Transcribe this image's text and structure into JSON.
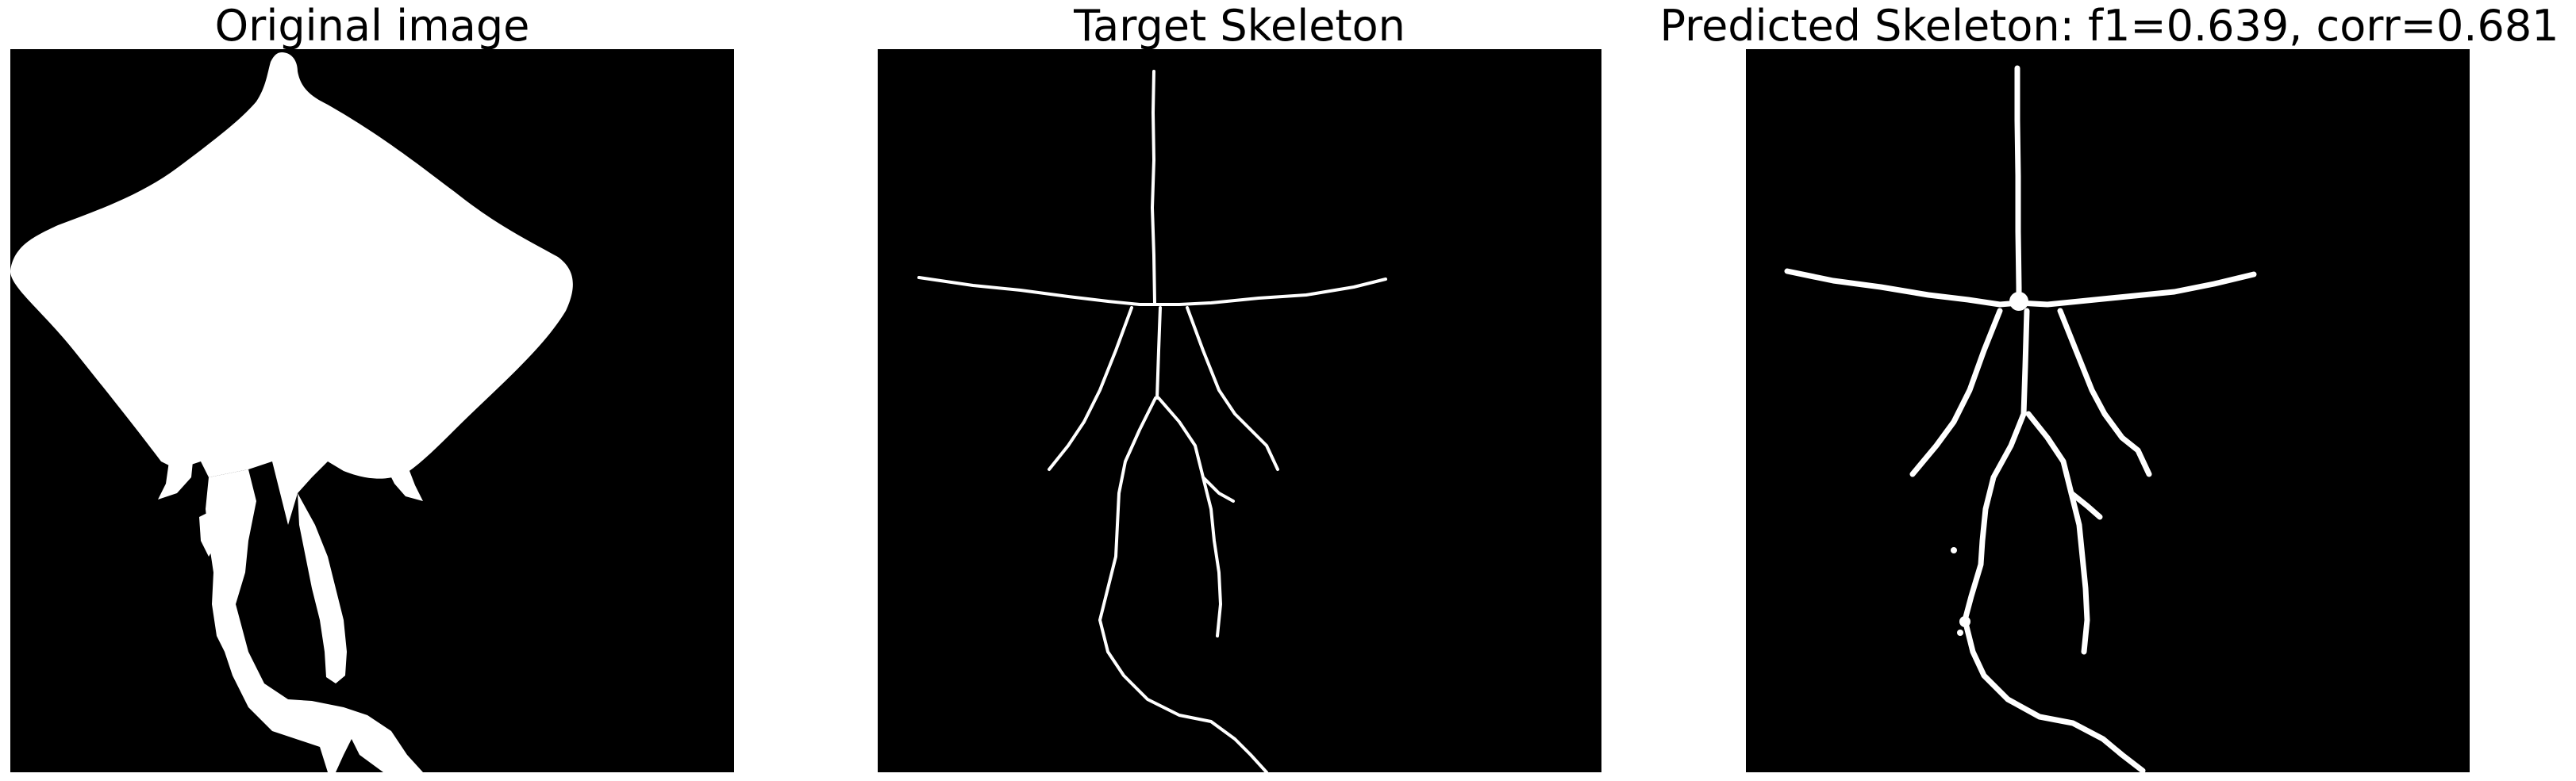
{
  "panels": [
    {
      "title": "Original image"
    },
    {
      "title": "Target Skeleton"
    },
    {
      "title": "Predicted Skeleton: f1=0.639, corr=0.681"
    }
  ],
  "colors": {
    "background": "#000000",
    "foreground": "#ffffff",
    "page": "#ffffff"
  }
}
